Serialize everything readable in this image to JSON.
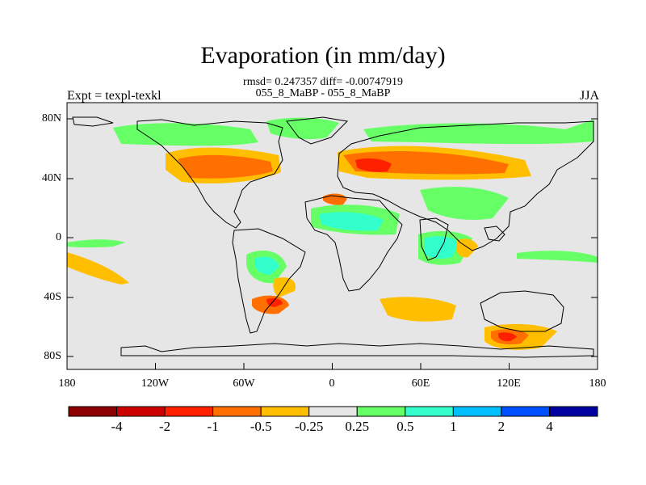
{
  "title": "Evaporation (in mm/day)",
  "subtitle": {
    "line1": "rmsd= 0.247357 diff= -0.00747919",
    "line2": "055_8_MaBP - 055_8_MaBP"
  },
  "left_label": "Expt = texpl-texkl",
  "right_label": "JJA",
  "map": {
    "projection": "cylindrical equidistant",
    "lon_range": [
      -180,
      180
    ],
    "lat_range": [
      -90,
      90
    ],
    "background_color": "#e6e6e6",
    "lat_ticks": [
      "80N",
      "40N",
      "0",
      "40S",
      "80S"
    ],
    "lon_ticks": [
      "180",
      "120W",
      "60W",
      "0",
      "60E",
      "120E",
      "180"
    ]
  },
  "colorbar": {
    "colors": [
      "#8b0000",
      "#cc0000",
      "#ff2000",
      "#ff7000",
      "#ffbf00",
      "#e6e6e6",
      "#66ff66",
      "#33ffcc",
      "#00bfff",
      "#0050ff",
      "#0000a0"
    ],
    "labels": [
      "-4",
      "-2",
      "-1",
      "-0.5",
      "-0.25",
      "0.25",
      "0.5",
      "1",
      "2",
      "4"
    ]
  }
}
